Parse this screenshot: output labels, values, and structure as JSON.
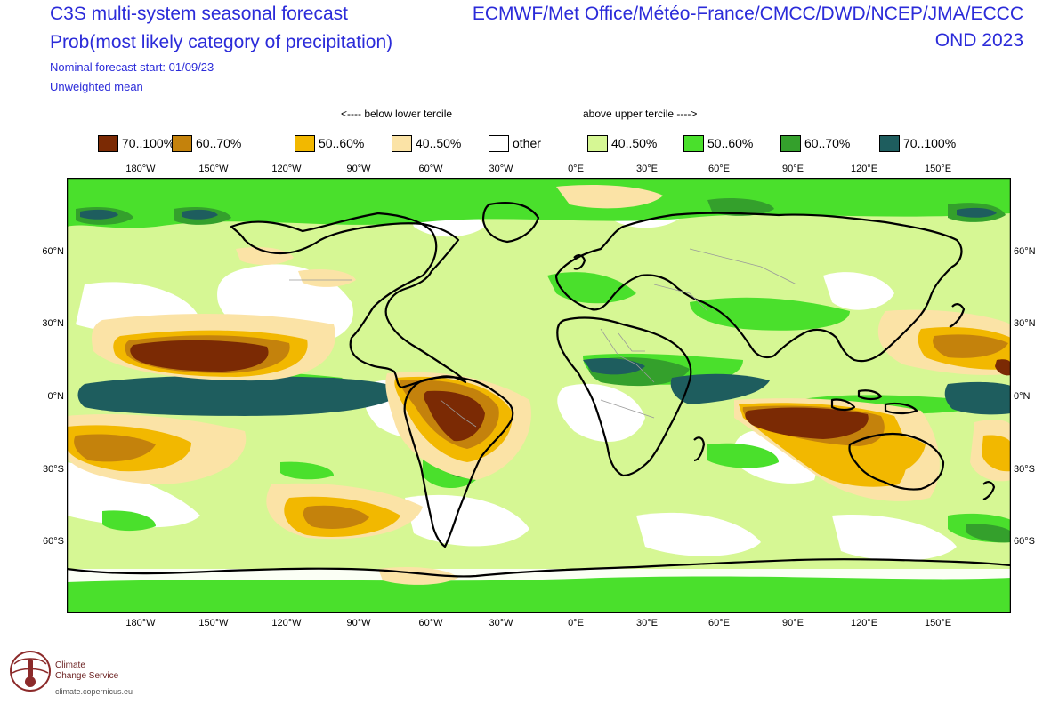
{
  "header": {
    "title1": "C3S multi-system seasonal forecast",
    "title2": "Prob(most likely category of precipitation)",
    "nominal_start": "Nominal forecast start: 01/09/23",
    "mean_type": "Unweighted mean",
    "systems": "ECMWF/Met Office/Météo-France/CMCC/DWD/NCEP/JMA/ECCC",
    "season": "OND 2023"
  },
  "legend": {
    "below_header": "<---- below lower tercile",
    "above_header": "above upper tercile ---->",
    "items": [
      {
        "label": "70..100%",
        "color": "#7b2a04"
      },
      {
        "label": "60..70%",
        "color": "#c4820c"
      },
      {
        "label": "50..60%",
        "color": "#f2b800"
      },
      {
        "label": "40..50%",
        "color": "#fbe3a6"
      },
      {
        "label": "other",
        "color": "#ffffff"
      },
      {
        "label": "40..50%",
        "color": "#d6f794"
      },
      {
        "label": "50..60%",
        "color": "#4ae02c"
      },
      {
        "label": "60..70%",
        "color": "#34a02c"
      },
      {
        "label": "70..100%",
        "color": "#1e5d5e"
      }
    ]
  },
  "axes": {
    "lon_ticks": [
      "180°W",
      "150°W",
      "120°W",
      "90°W",
      "60°W",
      "30°W",
      "0°E",
      "30°E",
      "60°E",
      "90°E",
      "120°E",
      "150°E"
    ],
    "lat_ticks_left": [
      "60°N",
      "30°N",
      "0°N",
      "30°S",
      "60°S"
    ],
    "lat_ticks_right": [
      "60°N",
      "30°N",
      "0°N",
      "30°S",
      "60°S"
    ]
  },
  "logo": {
    "line1": "Climate",
    "line2": "Change Service",
    "url": "climate.copernicus.eu"
  }
}
